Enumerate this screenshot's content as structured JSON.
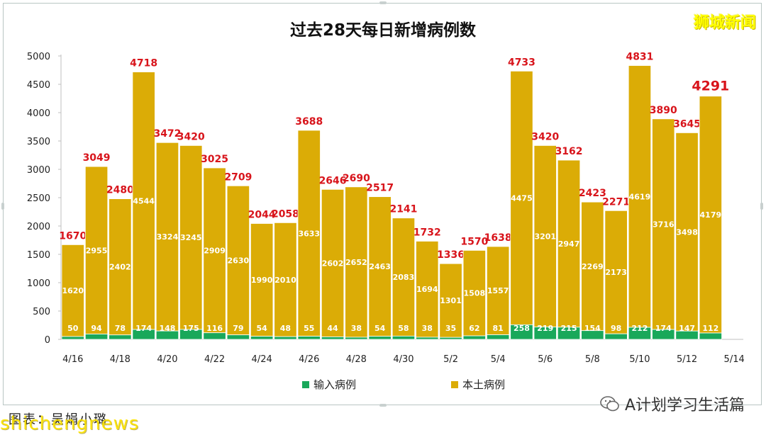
{
  "brand": "狮城新闻",
  "caption": "图表：吴娟小璐",
  "watermark_left": "shichengnews",
  "watermark_right": "A计划学习生活篇",
  "colors": {
    "imported": "#19a85a",
    "local": "#dbac06",
    "total_label": "#d8141b",
    "inner_label": "#ffffff",
    "axis": "#bfbfbf"
  },
  "chart_data": {
    "type": "bar",
    "stacked": true,
    "title": "过去28天每日新增病例数",
    "categories": [
      "4/16",
      "4/17",
      "4/18",
      "4/19",
      "4/20",
      "4/21",
      "4/22",
      "4/23",
      "4/24",
      "4/25",
      "4/26",
      "4/27",
      "4/28",
      "4/29",
      "4/30",
      "5/1",
      "5/2",
      "5/3",
      "5/4",
      "5/5",
      "5/6",
      "5/7",
      "5/8",
      "5/9",
      "5/10",
      "5/11",
      "5/12",
      "5/13"
    ],
    "x_tick_labels": [
      "4/16",
      "4/18",
      "4/20",
      "4/22",
      "4/24",
      "4/26",
      "4/28",
      "4/30",
      "5/2",
      "5/4",
      "5/6",
      "5/8",
      "5/10",
      "5/12",
      "5/14"
    ],
    "series": [
      {
        "name": "输入病例",
        "values": [
          50,
          94,
          78,
          174,
          148,
          175,
          116,
          79,
          54,
          48,
          55,
          44,
          38,
          54,
          58,
          38,
          35,
          62,
          81,
          258,
          219,
          215,
          154,
          98,
          212,
          174,
          147,
          112
        ]
      },
      {
        "name": "本土病例",
        "values": [
          1620,
          2955,
          2402,
          4544,
          3324,
          3245,
          2909,
          2630,
          1990,
          2010,
          3633,
          2602,
          2652,
          2463,
          2083,
          1694,
          1301,
          1508,
          1557,
          4475,
          3201,
          2947,
          2269,
          2173,
          4619,
          3716,
          3498,
          4179
        ]
      }
    ],
    "totals": [
      1670,
      3049,
      2480,
      4718,
      3472,
      3420,
      3025,
      2709,
      2044,
      2058,
      3688,
      2646,
      2690,
      2517,
      2141,
      1732,
      1336,
      1570,
      1638,
      4733,
      3420,
      3162,
      2423,
      2271,
      4831,
      3890,
      3645,
      4291
    ],
    "y_ticks": [
      0,
      500,
      1000,
      1500,
      2000,
      2500,
      3000,
      3500,
      4000,
      4500,
      5000
    ],
    "ylim": [
      0,
      5000
    ],
    "legend_position": "bottom",
    "grid": false
  }
}
